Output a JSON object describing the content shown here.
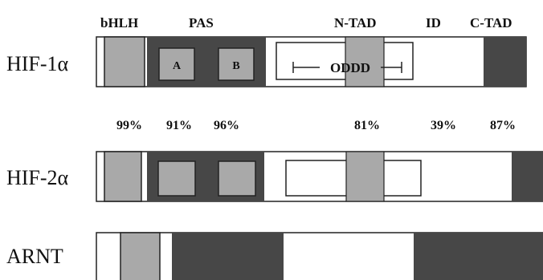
{
  "domain_labels": {
    "bhlh": "bHLH",
    "pas": "PAS",
    "ntad": "N-TAD",
    "id": "ID",
    "ctad": "C-TAD"
  },
  "proteins": {
    "hif1a": "HIF-1α",
    "hif2a": "HIF-2α",
    "arnt": "ARNT"
  },
  "subdomains": {
    "pas_a": "A",
    "pas_b": "B",
    "oddd": "ODDD"
  },
  "identity": {
    "bhlh": "99%",
    "pas_a": "91%",
    "pas_b": "96%",
    "ntad": "81%",
    "id": "39%",
    "ctad": "87%"
  },
  "colors": {
    "dark": "#474747",
    "light": "#a9a9a9",
    "outline": "#222222"
  }
}
